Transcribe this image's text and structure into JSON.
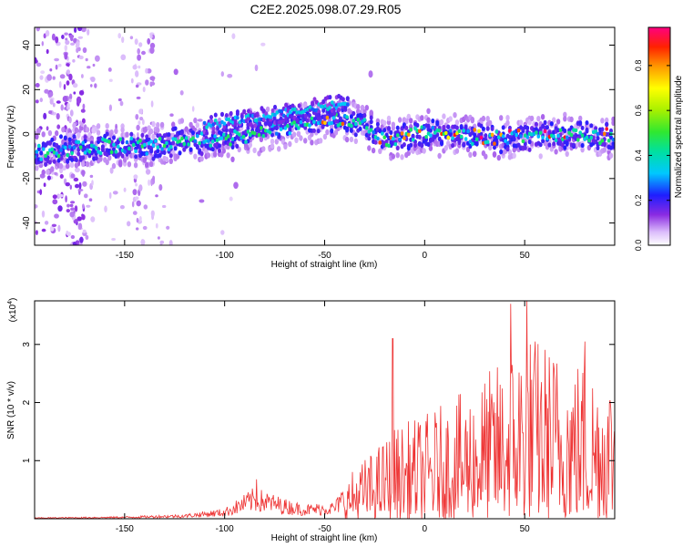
{
  "title": "C2E2.2025.098.07.29.R05",
  "spectrogram": {
    "type": "heatmap",
    "xlabel": "Height of straight line (km)",
    "ylabel": "Frequency (Hz)",
    "xlim": [
      -195,
      95
    ],
    "ylim": [
      -50,
      48
    ],
    "xticks": [
      -150,
      -100,
      -50,
      0,
      50
    ],
    "yticks": [
      -40,
      -20,
      0,
      20,
      40
    ],
    "colorbar": {
      "label": "Normalized spectral amplitude",
      "range": [
        0,
        0.97
      ],
      "ticks": [
        0.0,
        0.2,
        0.4,
        0.6,
        0.8
      ],
      "tick_labels": [
        "0.0",
        "0.2",
        "0.4",
        "0.6",
        "0.8"
      ]
    },
    "ridge": [
      {
        "x": -190,
        "y": -8
      },
      {
        "x": -160,
        "y": -5
      },
      {
        "x": -140,
        "y": -6
      },
      {
        "x": -120,
        "y": -3
      },
      {
        "x": -100,
        "y": -2
      },
      {
        "x": -80,
        "y": 2
      },
      {
        "x": -60,
        "y": 5
      },
      {
        "x": -45,
        "y": 6
      },
      {
        "x": -30,
        "y": 5
      },
      {
        "x": -22,
        "y": -3
      },
      {
        "x": 0,
        "y": 1
      },
      {
        "x": 20,
        "y": -1
      },
      {
        "x": 40,
        "y": -2
      },
      {
        "x": 60,
        "y": -1
      },
      {
        "x": 80,
        "y": 0
      },
      {
        "x": 95,
        "y": -2
      }
    ],
    "upper_branch": [
      {
        "x": -110,
        "y": 4
      },
      {
        "x": -80,
        "y": 8
      },
      {
        "x": -60,
        "y": 11
      },
      {
        "x": -45,
        "y": 13
      },
      {
        "x": -38,
        "y": 14
      }
    ],
    "outlier": {
      "x": -27,
      "y": 27
    }
  },
  "snr_chart": {
    "type": "line",
    "xlabel": "Height of straight line (km)",
    "ylabel": "SNR (10 * v/v)",
    "y_multiplier": "(x10^4)",
    "xlim": [
      -195,
      95
    ],
    "ylim": [
      0,
      3.75
    ],
    "xticks": [
      -150,
      -100,
      -50,
      0,
      50
    ],
    "yticks": [
      1,
      2,
      3
    ],
    "color": "#ee3333",
    "envelope": [
      {
        "x": -195,
        "y": 0.02
      },
      {
        "x": -150,
        "y": 0.04
      },
      {
        "x": -120,
        "y": 0.08
      },
      {
        "x": -100,
        "y": 0.18
      },
      {
        "x": -85,
        "y": 0.55
      },
      {
        "x": -70,
        "y": 0.35
      },
      {
        "x": -60,
        "y": 0.25
      },
      {
        "x": -45,
        "y": 0.3
      },
      {
        "x": -35,
        "y": 0.9
      },
      {
        "x": -25,
        "y": 1.2
      },
      {
        "x": -15,
        "y": 1.6
      },
      {
        "x": 0,
        "y": 1.8
      },
      {
        "x": 20,
        "y": 2.2
      },
      {
        "x": 40,
        "y": 2.8
      },
      {
        "x": 50,
        "y": 3.3
      },
      {
        "x": 70,
        "y": 2.9
      },
      {
        "x": 95,
        "y": 2.6
      }
    ],
    "spikes": [
      {
        "x": -84,
        "y": 0.68
      },
      {
        "x": -16,
        "y": 3.1
      },
      {
        "x": 43,
        "y": 3.7
      },
      {
        "x": 51,
        "y": 3.75
      },
      {
        "x": 80,
        "y": 3.05
      }
    ]
  }
}
